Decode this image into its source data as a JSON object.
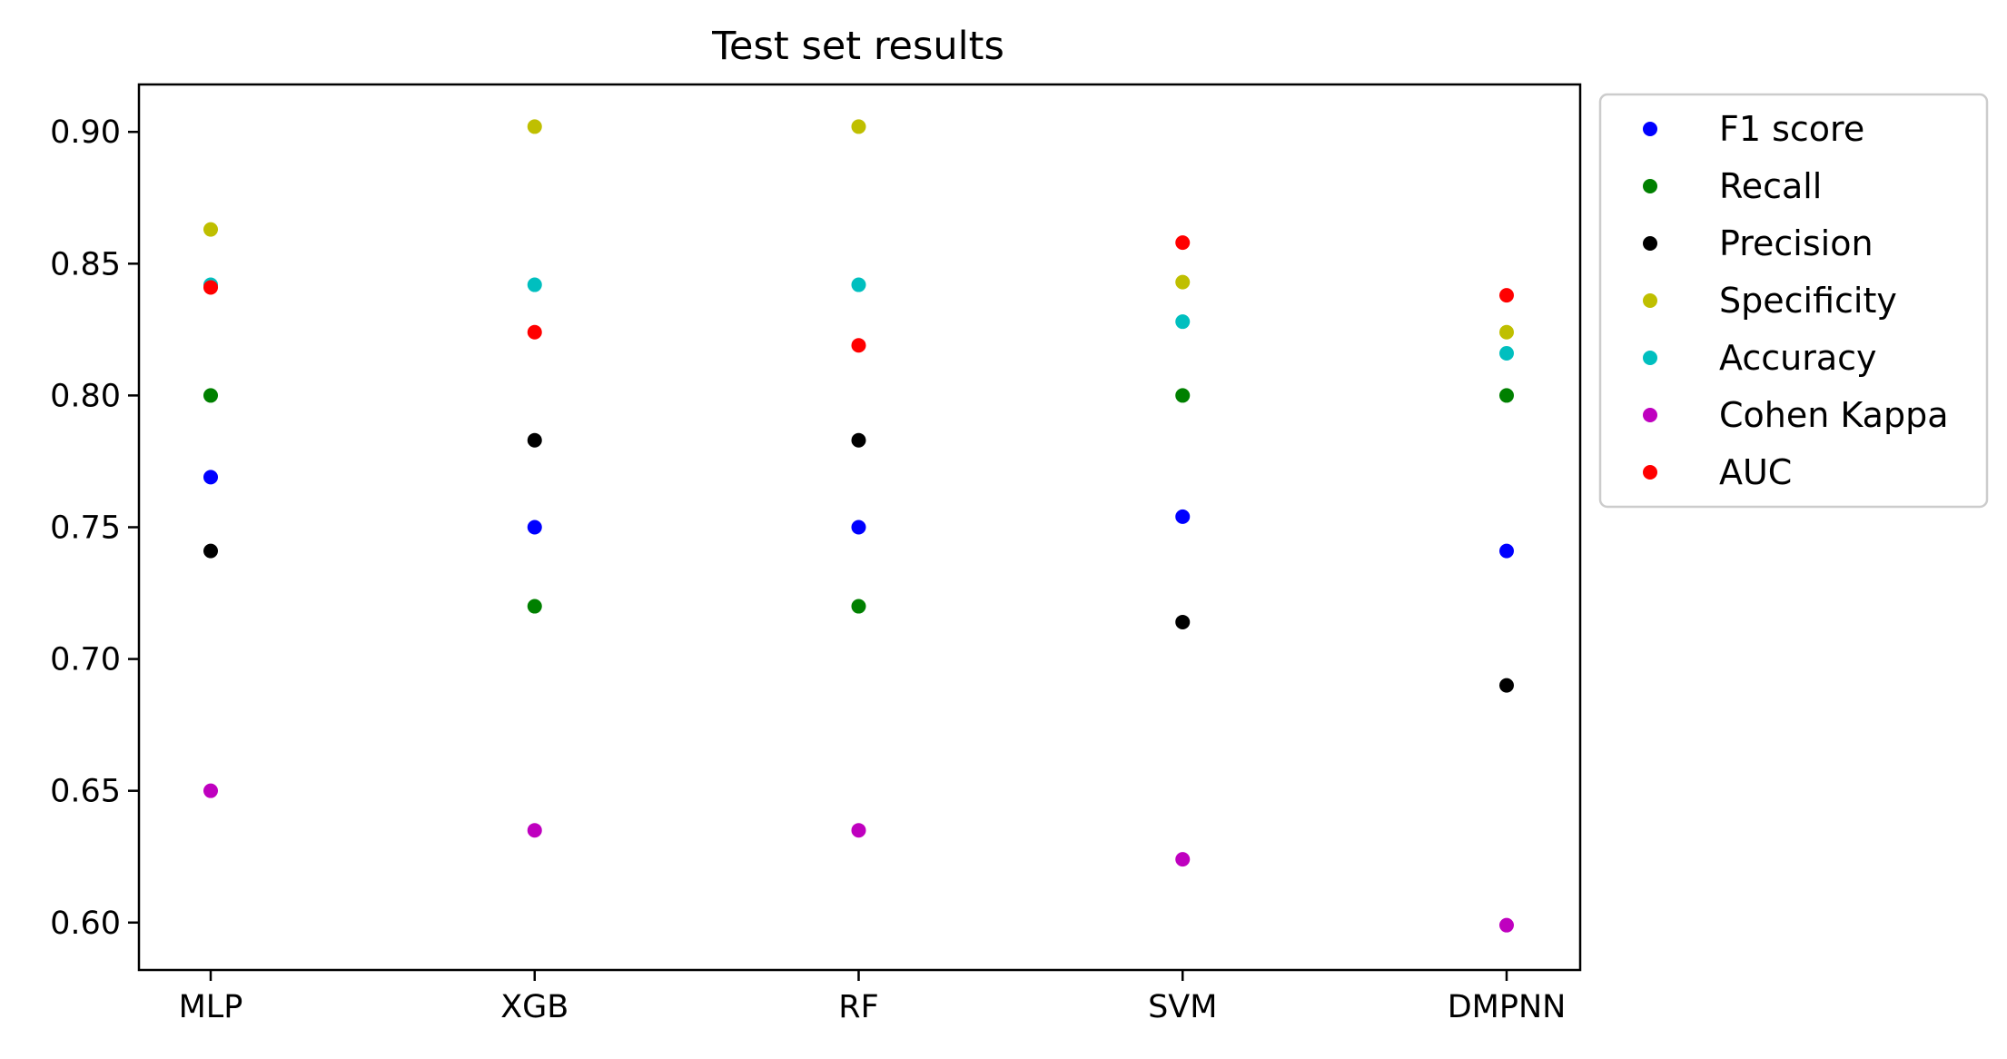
{
  "chart_data": {
    "type": "scatter",
    "title": "Test set results",
    "xlabel": "",
    "ylabel": "",
    "categories": [
      "MLP",
      "XGB",
      "RF",
      "SVM",
      "DMPNN"
    ],
    "ylim": [
      0.582,
      0.918
    ],
    "yticks": [
      0.6,
      0.65,
      0.7,
      0.75,
      0.8,
      0.85,
      0.9
    ],
    "ytick_labels": [
      "0.60",
      "0.65",
      "0.70",
      "0.75",
      "0.80",
      "0.85",
      "0.90"
    ],
    "grid": false,
    "legend_position": "outside upper right",
    "series": [
      {
        "name": "F1 score",
        "color": "#0000ff",
        "values": [
          0.769,
          0.75,
          0.75,
          0.754,
          0.741
        ]
      },
      {
        "name": "Recall",
        "color": "#008000",
        "values": [
          0.8,
          0.72,
          0.72,
          0.8,
          0.8
        ]
      },
      {
        "name": "Precision",
        "color": "#000000",
        "values": [
          0.741,
          0.783,
          0.783,
          0.714,
          0.69
        ]
      },
      {
        "name": "Specificity",
        "color": "#bfbf00",
        "values": [
          0.863,
          0.902,
          0.902,
          0.843,
          0.824
        ]
      },
      {
        "name": "Accuracy",
        "color": "#00bfbf",
        "values": [
          0.842,
          0.842,
          0.842,
          0.828,
          0.816
        ]
      },
      {
        "name": "Cohen Kappa",
        "color": "#bf00bf",
        "values": [
          0.65,
          0.635,
          0.635,
          0.624,
          0.599
        ]
      },
      {
        "name": "AUC",
        "color": "#ff0000",
        "values": [
          0.841,
          0.824,
          0.819,
          0.858,
          0.838
        ]
      }
    ]
  }
}
